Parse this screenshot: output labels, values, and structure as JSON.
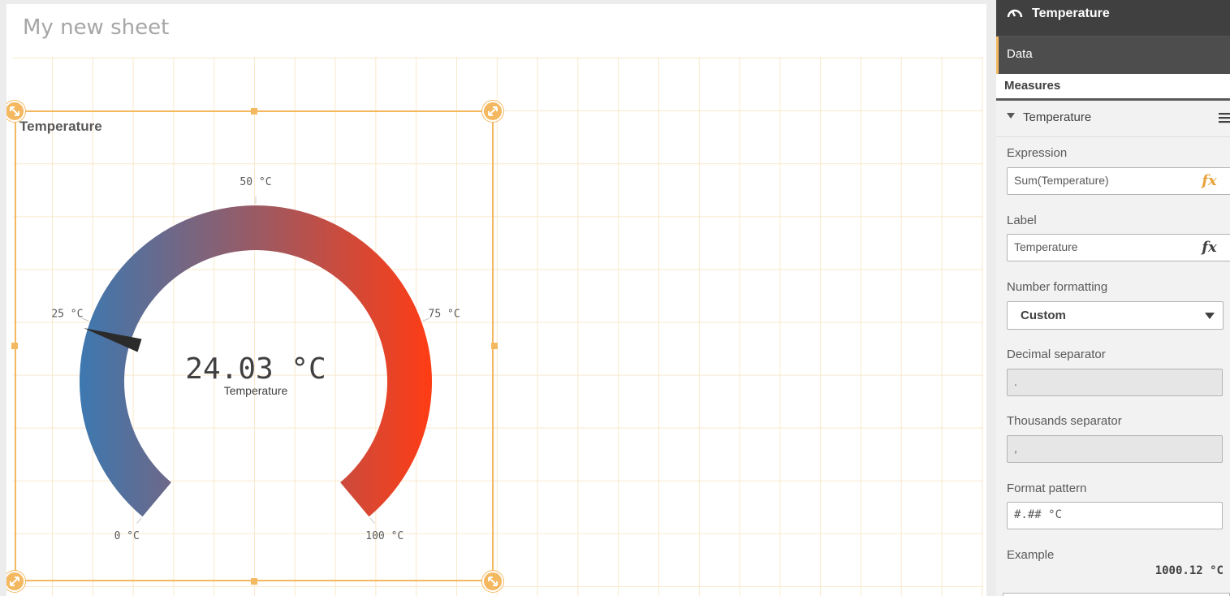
{
  "sheet": {
    "title": "My new sheet"
  },
  "gauge": {
    "title": "Temperature",
    "value": 24.03,
    "value_text": "24.03 °C",
    "measure_label": "Temperature",
    "min": 0,
    "max": 100,
    "ticks": [
      {
        "value": 0,
        "label": "0 °C"
      },
      {
        "value": 25,
        "label": "25 °C"
      },
      {
        "value": 50,
        "label": "50 °C"
      },
      {
        "value": 75,
        "label": "75 °C"
      },
      {
        "value": 100,
        "label": "100 °C"
      }
    ],
    "colors": {
      "low": "#3d78b0",
      "mid": "#9a5a64",
      "high": "#ff3c14",
      "needle": "#2b2b2b",
      "selection": "#f4b860"
    }
  },
  "panel": {
    "header_title": "Temperature",
    "header_icon": "gauge-icon",
    "tab_label": "Data",
    "measures_heading": "Measures",
    "measure_item_label": "Temperature",
    "expression_label": "Expression",
    "expression_value": "Sum(Temperature)",
    "label_label": "Label",
    "label_value": "Temperature",
    "fx_label": "fx",
    "number_formatting_label": "Number formatting",
    "number_formatting_value": "Custom",
    "decimal_separator_label": "Decimal separator",
    "decimal_separator_value": ".",
    "thousands_separator_label": "Thousands separator",
    "thousands_separator_value": ",",
    "format_pattern_label": "Format pattern",
    "format_pattern_value": "#.## °C",
    "example_label": "Example",
    "example_value": "1000.12 °C"
  }
}
